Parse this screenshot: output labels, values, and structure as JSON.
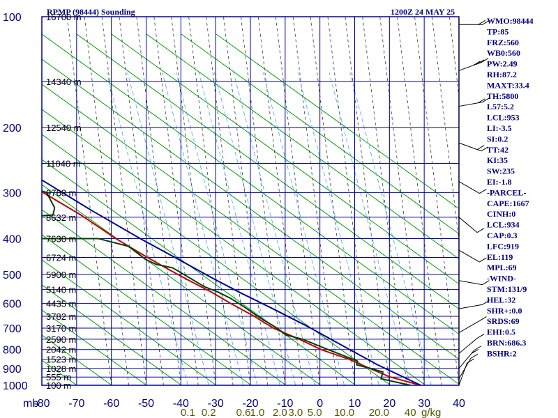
{
  "header": {
    "left_title": "RPMP (98444) Sounding",
    "right_title": "1200Z 24 MAY 25"
  },
  "chart_data": {
    "type": "line",
    "title": "RPMP (98444) Sounding",
    "subtitle": "1200Z 24 MAY 25",
    "x_range": [
      -80,
      40
    ],
    "y_range": [
      1000,
      100
    ],
    "y_scale": "log-pressure",
    "pressure_ticks": [
      100,
      200,
      300,
      400,
      500,
      600,
      700,
      800,
      900,
      1000
    ],
    "pressure_unit": "mb",
    "temperature_ticks": [
      -80,
      -70,
      -60,
      -50,
      -40,
      -30,
      -20,
      -10,
      0,
      10,
      20,
      30,
      40
    ],
    "mixing_ratio_labels": [
      {
        "text": "0.1",
        "x": -38
      },
      {
        "text": "0.2",
        "x": -32
      },
      {
        "text": "0.6",
        "x": -22
      },
      {
        "text": "1.0",
        "x": -18
      },
      {
        "text": "2.0",
        "x": -11.5
      },
      {
        "text": "3.0",
        "x": -7
      },
      {
        "text": "5.0",
        "x": -1.5
      },
      {
        "text": "10.0",
        "x": 7
      },
      {
        "text": "20.0",
        "x": 17
      },
      {
        "text": "40",
        "x": 26
      },
      {
        "text": "g/kg",
        "x": 32
      }
    ],
    "heights": [
      {
        "label": "16700 m",
        "p": 100
      },
      {
        "label": "14340 m",
        "p": 150
      },
      {
        "label": "12540 m",
        "p": 200
      },
      {
        "label": "11040 m",
        "p": 250
      },
      {
        "label": "9768 m",
        "p": 300
      },
      {
        "label": "8632 m",
        "p": 350
      },
      {
        "label": "7630 m",
        "p": 400
      },
      {
        "label": "6724 m",
        "p": 450
      },
      {
        "label": "5900 m",
        "p": 500
      },
      {
        "label": "5140 m",
        "p": 550
      },
      {
        "label": "4435 m",
        "p": 600
      },
      {
        "label": "3782 m",
        "p": 650
      },
      {
        "label": "3170 m",
        "p": 700
      },
      {
        "label": "2590 m",
        "p": 750
      },
      {
        "label": "2042 m",
        "p": 800
      },
      {
        "label": "1523 m",
        "p": 850
      },
      {
        "label": "1028 m",
        "p": 900
      },
      {
        "label": "555 m",
        "p": 950
      },
      {
        "label": "100 m",
        "p": 1000
      }
    ],
    "series": [
      {
        "color": "#c00000",
        "points": [
          [
            -80,
            100
          ],
          [
            -75,
            112
          ],
          [
            -70,
            125
          ],
          [
            -66,
            140
          ],
          [
            -62,
            158
          ],
          [
            -57,
            177
          ],
          [
            -52,
            200
          ],
          [
            -47,
            228
          ],
          [
            -42,
            260
          ],
          [
            -38,
            300
          ],
          [
            -32,
            345
          ],
          [
            -27,
            400
          ],
          [
            -23,
            440
          ],
          [
            -19,
            480
          ],
          [
            -15,
            520
          ],
          [
            -11,
            560
          ],
          [
            -8,
            600
          ],
          [
            -4,
            650
          ],
          [
            -1,
            700
          ],
          [
            4,
            750
          ],
          [
            8,
            800
          ],
          [
            14,
            850
          ],
          [
            18,
            900
          ],
          [
            22,
            950
          ],
          [
            29,
            1000
          ]
        ]
      },
      {
        "color": "#004000",
        "points": [
          [
            -82,
            105
          ],
          [
            -77,
            115
          ],
          [
            -73,
            125
          ],
          [
            -69,
            140
          ],
          [
            -66,
            158
          ],
          [
            -61,
            177
          ],
          [
            -57,
            200
          ],
          [
            -61,
            212
          ],
          [
            -55,
            218
          ],
          [
            -51,
            230
          ],
          [
            -48,
            250
          ],
          [
            -45,
            270
          ],
          [
            -42,
            285
          ],
          [
            -37,
            300
          ],
          [
            -38,
            330
          ],
          [
            -40,
            345
          ],
          [
            -56,
            353
          ],
          [
            -56,
            400
          ],
          [
            -32,
            400
          ],
          [
            -25,
            420
          ],
          [
            -23,
            455
          ],
          [
            -21,
            470
          ],
          [
            -17,
            480
          ],
          [
            -14,
            515
          ],
          [
            -12,
            540
          ],
          [
            -9,
            560
          ],
          [
            -7,
            580
          ],
          [
            -5,
            610
          ],
          [
            -3,
            650
          ],
          [
            0,
            700
          ],
          [
            1,
            730
          ],
          [
            5,
            750
          ],
          [
            9,
            790
          ],
          [
            16,
            860
          ],
          [
            15,
            880
          ],
          [
            21,
            920
          ],
          [
            19,
            960
          ],
          [
            26,
            1000
          ]
        ]
      },
      {
        "color": "#0000a0",
        "points": [
          [
            -80,
            112
          ],
          [
            -70,
            130
          ],
          [
            -60,
            155
          ],
          [
            -52,
            185
          ],
          [
            -44,
            225
          ],
          [
            -36,
            275
          ],
          [
            -28,
            335
          ],
          [
            -20,
            400
          ],
          [
            -13,
            460
          ],
          [
            -8,
            510
          ],
          [
            -3,
            560
          ],
          [
            3,
            620
          ],
          [
            9,
            690
          ],
          [
            15,
            780
          ],
          [
            21,
            880
          ],
          [
            29,
            1000
          ]
        ]
      }
    ],
    "wind_barbs": [
      {
        "p": 105,
        "dir": 270,
        "spd": 15
      },
      {
        "p": 140,
        "dir": 250,
        "spd": 25
      },
      {
        "p": 175,
        "dir": 260,
        "spd": 20
      },
      {
        "p": 220,
        "dir": 290,
        "spd": 15
      },
      {
        "p": 280,
        "dir": 300,
        "spd": 10
      },
      {
        "p": 350,
        "dir": 310,
        "spd": 10
      },
      {
        "p": 430,
        "dir": 300,
        "spd": 5
      },
      {
        "p": 520,
        "dir": 280,
        "spd": 5
      },
      {
        "p": 620,
        "dir": 260,
        "spd": 5
      },
      {
        "p": 720,
        "dir": 240,
        "spd": 10
      },
      {
        "p": 820,
        "dir": 230,
        "spd": 10
      },
      {
        "p": 900,
        "dir": 220,
        "spd": 15
      },
      {
        "p": 960,
        "dir": 210,
        "spd": 10
      },
      {
        "p": 1000,
        "dir": 200,
        "spd": 5
      }
    ]
  },
  "indices": [
    "WMO:98444",
    "TP:85",
    "FRZ:560",
    "WB0:560",
    "PW:2.49",
    "RH:87.2",
    "MAXT:33.4",
    "TH:5800",
    "L57:5.2",
    "LCL:953",
    "LI:-3.5",
    "SI:0.2",
    "TT:42",
    "KI:35",
    "SW:235",
    "EI:-1.8",
    "-PARCEL-",
    "CAPE:1667",
    "CINH:0",
    "LCL:934",
    "CAP:0.3",
    "LFC:919",
    "EL:119",
    "MPL:69",
    "-WIND-",
    "STM:131/9",
    "HEL:32",
    "SHR+:0.0",
    "SRDS:69",
    "EHI:0.5",
    "BRN:686.3",
    "BSHR:2"
  ]
}
